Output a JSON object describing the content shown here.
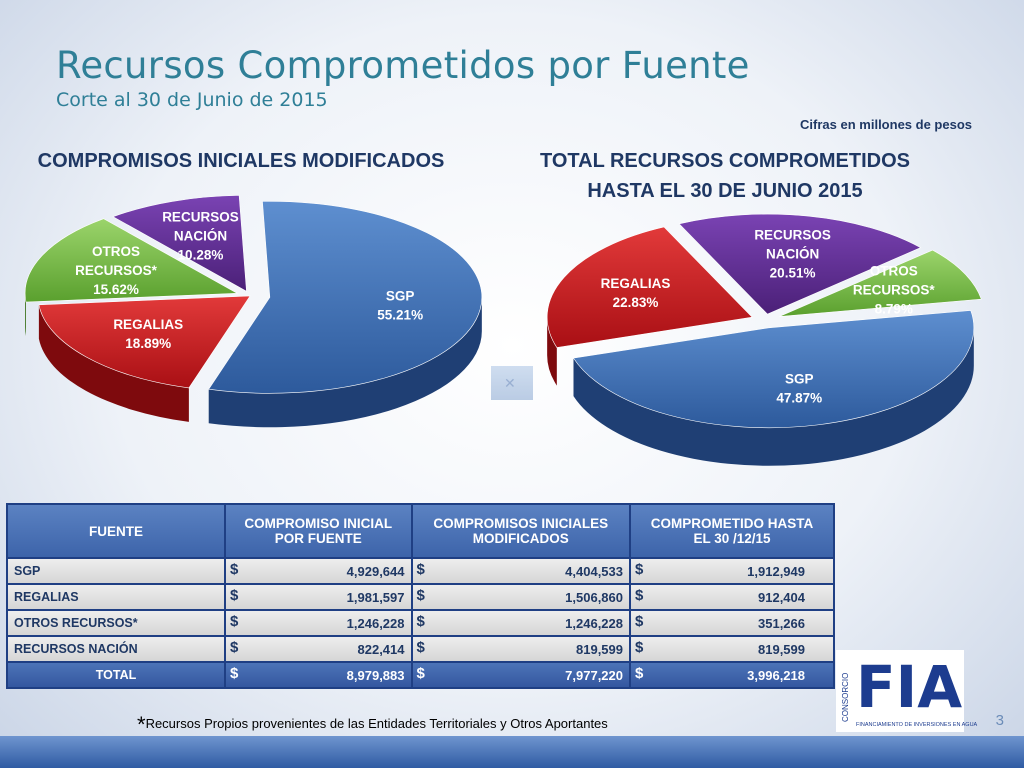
{
  "title": "Recursos Comprometidos por Fuente",
  "subtitle": "Corte al 30 de Junio de 2015",
  "units_note": "Cifras en millones de pesos",
  "colors": {
    "sgp": "#3a6fb5",
    "regalias": "#c8171c",
    "otros": "#6db33f",
    "nacion": "#5b2a8f",
    "header": "#3d64aa"
  },
  "chart_data": [
    {
      "type": "pie",
      "title": "COMPROMISOS INICIALES MODIFICADOS",
      "slices": [
        {
          "name": "SGP",
          "line1": "SGP",
          "line2": "",
          "pct_label": "55.21%",
          "value": 55.21
        },
        {
          "name": "REGALIAS",
          "line1": "REGALIAS",
          "line2": "",
          "pct_label": "18.89%",
          "value": 18.89
        },
        {
          "name": "OTROS RECURSOS*",
          "line1": "OTROS",
          "line2": "RECURSOS*",
          "pct_label": "15.62%",
          "value": 15.62
        },
        {
          "name": "RECURSOS NACIÓN",
          "line1": "RECURSOS",
          "line2": "NACIÓN",
          "pct_label": "10.28%",
          "value": 10.28
        }
      ]
    },
    {
      "type": "pie",
      "title_line1": "TOTAL RECURSOS COMPROMETIDOS",
      "title_line2": "HASTA EL  30 DE JUNIO 2015",
      "slices": [
        {
          "name": "SGP",
          "line1": "SGP",
          "line2": "",
          "pct_label": "47.87%",
          "value": 47.87
        },
        {
          "name": "REGALIAS",
          "line1": "REGALIAS",
          "line2": "",
          "pct_label": "22.83%",
          "value": 22.83
        },
        {
          "name": "RECURSOS NACIÓN",
          "line1": "RECURSOS",
          "line2": "NACIÓN",
          "pct_label": "20.51%",
          "value": 20.51
        },
        {
          "name": "OTROS RECURSOS*",
          "line1": "OTROS",
          "line2": "RECURSOS*",
          "pct_label": "8.79%",
          "value": 8.79
        }
      ]
    }
  ],
  "table": {
    "headers": {
      "fuente": "FUENTE",
      "c1_l1": "COMPROMISO INICIAL",
      "c1_l2": "POR FUENTE",
      "c2_l1": "COMPROMISOS INICIALES",
      "c2_l2": "MODIFICADOS",
      "c3_l1": "COMPROMETIDO HASTA",
      "c3_l2": "EL 30 /12/15"
    },
    "currency": "$",
    "rows": [
      {
        "fuente": "SGP",
        "c1": "4,929,644",
        "c2": "4,404,533",
        "c3": "1,912,949"
      },
      {
        "fuente": "REGALIAS",
        "c1": "1,981,597",
        "c2": "1,506,860",
        "c3": "912,404"
      },
      {
        "fuente": "OTROS RECURSOS*",
        "c1": "1,246,228",
        "c2": "1,246,228",
        "c3": "351,266"
      },
      {
        "fuente": "RECURSOS NACIÓN",
        "c1": "822,414",
        "c2": "819,599",
        "c3": "819,599"
      }
    ],
    "total": {
      "fuente": "TOTAL",
      "c1": "8,979,883",
      "c2": "7,977,220",
      "c3": "3,996,218"
    }
  },
  "footnote_star": "*",
  "footnote": "Recursos Propios provenientes de las Entidades Territoriales y Otros Aportantes",
  "page_number": "3",
  "logo": {
    "side_text": "CONSORCIO",
    "letters": "FIA",
    "tagline": "FINANCIAMIENTO DE INVERSIONES EN AGUA"
  }
}
